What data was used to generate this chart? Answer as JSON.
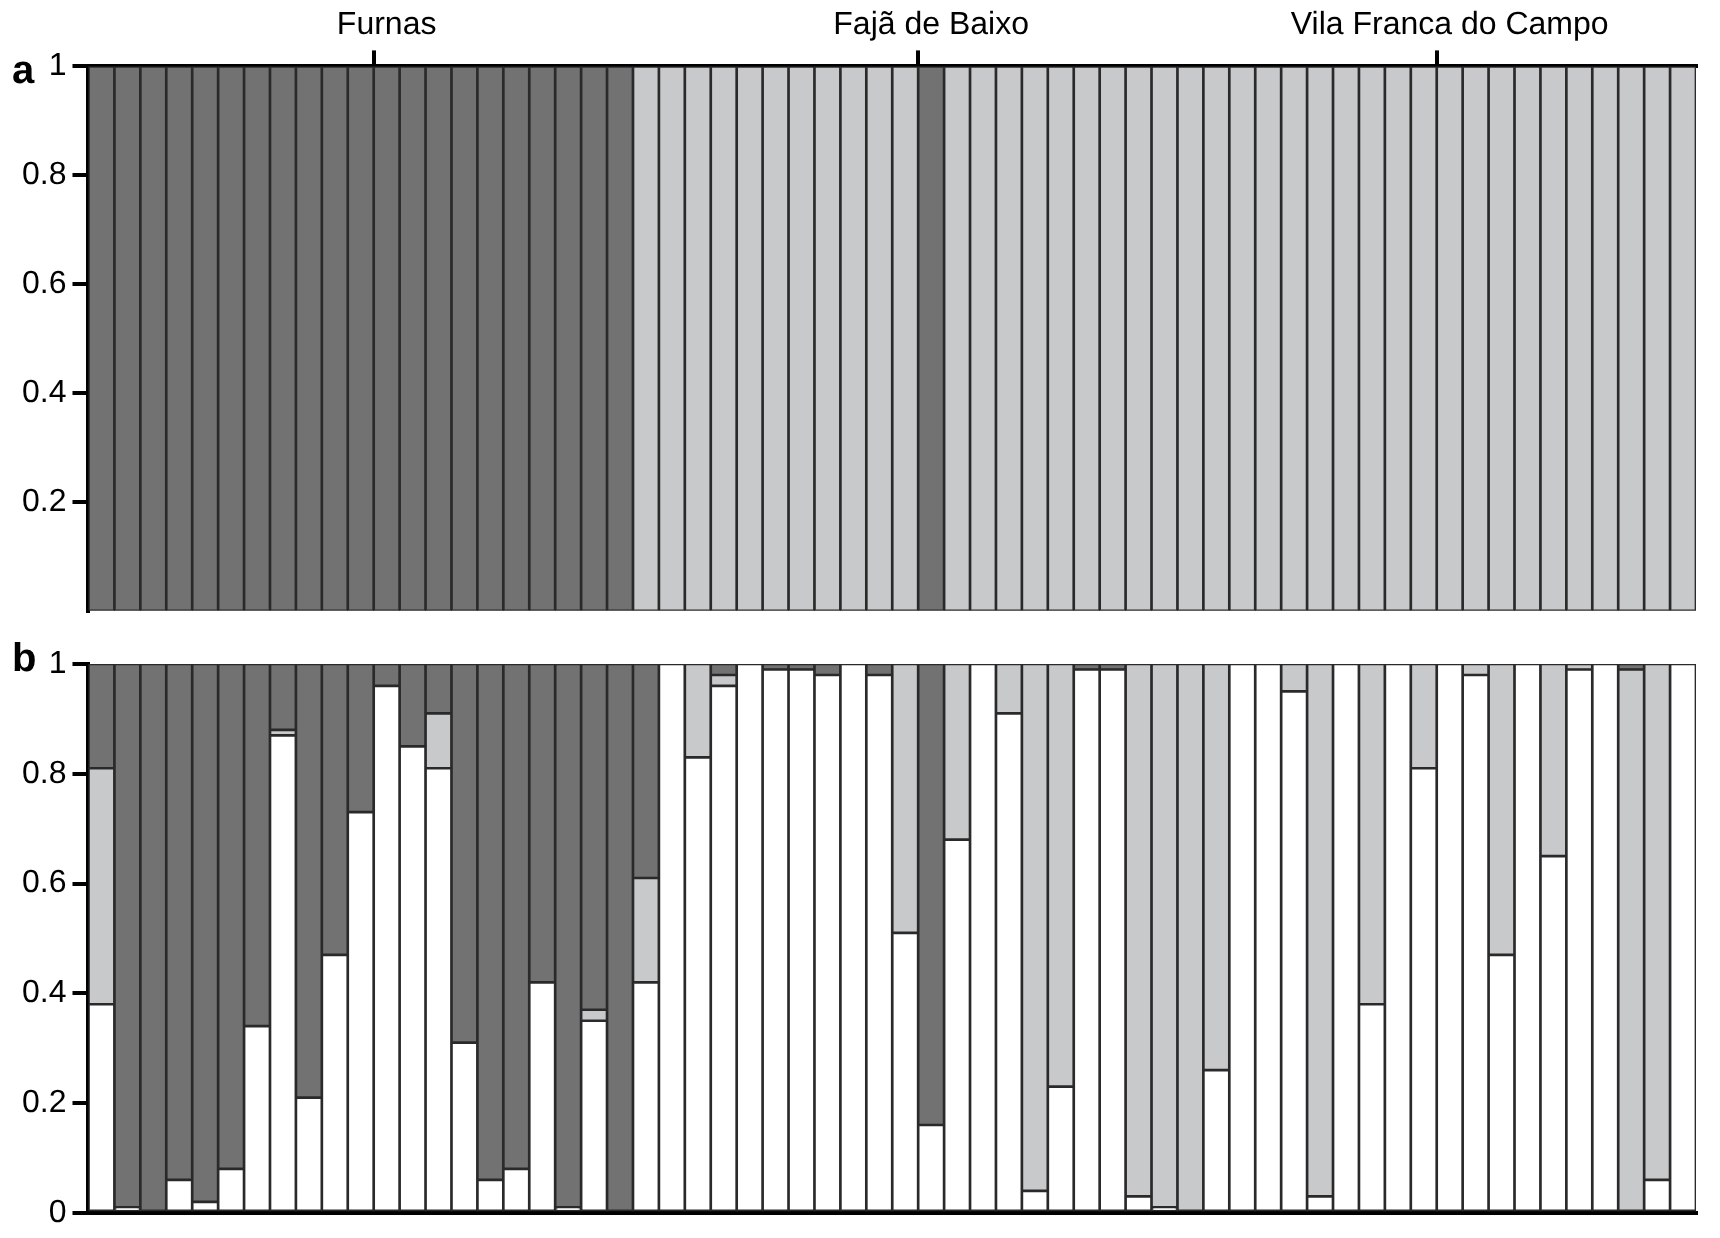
{
  "chart_data": [
    {
      "type": "bar",
      "title": "a",
      "stacked": true,
      "legend": false,
      "grid": false,
      "ylim": [
        0,
        1
      ],
      "yticks": [
        0.2,
        0.4,
        0.6,
        0.8,
        1
      ],
      "categories": [
        null,
        null,
        null,
        null,
        null,
        null,
        null,
        null,
        null,
        null,
        null,
        "Furnas",
        null,
        null,
        null,
        null,
        null,
        null,
        null,
        null,
        null,
        null,
        null,
        null,
        null,
        null,
        null,
        null,
        null,
        null,
        null,
        null,
        "Fajã de Baixo",
        null,
        null,
        null,
        null,
        null,
        null,
        null,
        null,
        null,
        null,
        null,
        null,
        null,
        null,
        null,
        null,
        null,
        null,
        null,
        "Vila Franca do Campo",
        null,
        null,
        null,
        null,
        null,
        null,
        null,
        null,
        null
      ],
      "series": [
        {
          "color": "#727272",
          "values": [
            1,
            1,
            1,
            1,
            1,
            1,
            1,
            1,
            1,
            1,
            1,
            1,
            1,
            1,
            1,
            1,
            1,
            1,
            1,
            1,
            1,
            0,
            0,
            0,
            0,
            0,
            0,
            0,
            0,
            0,
            0,
            0,
            1,
            0,
            0,
            0,
            0,
            0,
            0,
            0,
            0,
            0,
            0,
            0,
            0,
            0,
            0,
            0,
            0,
            0,
            0,
            0,
            0,
            0,
            0,
            0,
            0,
            0,
            0,
            0,
            0,
            0
          ]
        },
        {
          "color": "#c8c9cb",
          "values": [
            0,
            0,
            0,
            0,
            0,
            0,
            0,
            0,
            0,
            0,
            0,
            0,
            0,
            0,
            0,
            0,
            0,
            0,
            0,
            0,
            0,
            1,
            1,
            1,
            1,
            1,
            1,
            1,
            1,
            1,
            1,
            1,
            0,
            1,
            1,
            1,
            1,
            1,
            1,
            1,
            1,
            1,
            1,
            1,
            1,
            1,
            1,
            1,
            1,
            1,
            1,
            1,
            1,
            1,
            1,
            1,
            1,
            1,
            1,
            1,
            1,
            1
          ]
        }
      ]
    },
    {
      "type": "bar",
      "title": "b",
      "stacked": true,
      "legend": false,
      "grid": false,
      "tick_labels": "y",
      "ylim": [
        0,
        1
      ],
      "yticks": [
        0,
        0.2,
        0.4,
        0.6,
        0.8,
        1
      ],
      "categories": [
        null,
        null,
        null,
        null,
        null,
        null,
        null,
        null,
        null,
        null,
        null,
        null,
        null,
        null,
        null,
        null,
        null,
        null,
        null,
        null,
        null,
        null,
        null,
        null,
        null,
        null,
        null,
        null,
        null,
        null,
        null,
        null,
        null,
        null,
        null,
        null,
        null,
        null,
        null,
        null,
        null,
        null,
        null,
        null,
        null,
        null,
        null,
        null,
        null,
        null,
        null,
        null,
        null,
        null,
        null,
        null,
        null,
        null,
        null,
        null,
        null,
        null
      ],
      "series": [
        {
          "color": "#ffffff",
          "values": [
            0.38,
            0.01,
            0,
            0.06,
            0.02,
            0.08,
            0.34,
            0.87,
            0.21,
            0.47,
            0.73,
            0.96,
            0.85,
            0.81,
            0.31,
            0.06,
            0.08,
            0.42,
            0.01,
            0.35,
            0,
            0.42,
            1,
            0.83,
            0.96,
            1,
            0.99,
            0.99,
            0.98,
            1,
            0.98,
            0.51,
            0.16,
            0.68,
            1,
            0.91,
            0.04,
            0.23,
            0.99,
            0.99,
            0.03,
            0.01,
            0,
            0.26,
            1,
            1,
            0.95,
            0.03,
            1,
            0.38,
            1,
            0.81,
            1,
            0.98,
            0.47,
            1,
            0.65,
            0.99,
            1,
            0,
            0.06,
            1
          ]
        },
        {
          "color": "#c8c9cb",
          "values": [
            0.43,
            0,
            0,
            0,
            0,
            0,
            0,
            0.01,
            0,
            0,
            0,
            0,
            0,
            0.1,
            0,
            0,
            0,
            0,
            0,
            0.02,
            0,
            0.19,
            0,
            0.17,
            0.02,
            0,
            0,
            0,
            0,
            0,
            0,
            0.49,
            0,
            0.32,
            0,
            0.09,
            0.96,
            0.77,
            0,
            0,
            0.97,
            0.99,
            1,
            0.74,
            0,
            0,
            0.05,
            0.97,
            0,
            0.62,
            0,
            0.19,
            0,
            0.02,
            0.53,
            0,
            0.35,
            0.01,
            0,
            0.99,
            0.94,
            0
          ]
        },
        {
          "color": "#727272",
          "values": [
            0.19,
            0.99,
            1,
            0.94,
            0.98,
            0.92,
            0.66,
            0.12,
            0.79,
            0.53,
            0.27,
            0.04,
            0.15,
            0.09,
            0.69,
            0.94,
            0.92,
            0.58,
            0.99,
            0.63,
            1,
            0.39,
            0,
            0,
            0.02,
            0,
            0.01,
            0.01,
            0.02,
            0,
            0.02,
            0,
            0.84,
            0,
            0,
            0,
            0,
            0,
            0.01,
            0.01,
            0,
            0,
            0,
            0,
            0,
            0,
            0,
            0,
            0,
            0,
            0,
            0,
            0,
            0,
            0,
            0,
            0,
            0,
            0,
            0.01,
            0,
            0
          ]
        }
      ]
    }
  ]
}
